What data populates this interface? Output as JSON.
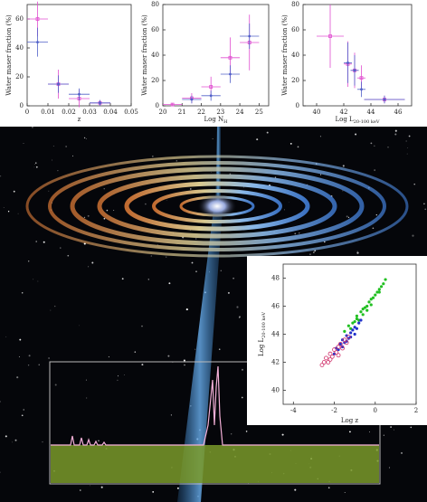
{
  "chart_data": [
    {
      "type": "scatter",
      "x_label": {
        "text": "z"
      },
      "y_label": {
        "text": "Water maser fraction (%)"
      },
      "xlim": [
        0,
        0.05
      ],
      "xticks": [
        0,
        0.01,
        0.02,
        0.03,
        0.04,
        0.05
      ],
      "ylim": [
        0,
        70
      ],
      "yticks": [
        0,
        20,
        40,
        60
      ],
      "series": [
        {
          "color": "#e04fd0",
          "marker": "square",
          "x": [
            0.005,
            0.015,
            0.025,
            0.035
          ],
          "values": [
            60,
            15,
            5,
            2
          ],
          "xerr": [
            0.005,
            0.005,
            0.005,
            0.005
          ],
          "yerr": [
            12,
            10,
            6,
            2
          ]
        },
        {
          "color": "#5060c8",
          "marker": "dot",
          "x": [
            0.005,
            0.015,
            0.025,
            0.035
          ],
          "values": [
            44,
            15,
            8,
            2
          ],
          "xerr": [
            0.005,
            0.005,
            0.005,
            0.005
          ],
          "yerr": [
            10,
            6,
            4,
            2
          ]
        }
      ]
    },
    {
      "type": "scatter",
      "x_label": {
        "text": "Log N",
        "sub": "H"
      },
      "y_label": {
        "text": "Water maser fraction (%)"
      },
      "xlim": [
        20,
        25.5
      ],
      "xticks": [
        20,
        21,
        22,
        23,
        24,
        25
      ],
      "ylim": [
        0,
        80
      ],
      "yticks": [
        0,
        20,
        40,
        60,
        80
      ],
      "series": [
        {
          "color": "#e04fd0",
          "marker": "square",
          "x": [
            20.5,
            21.5,
            22.5,
            23.5,
            24.5
          ],
          "values": [
            1,
            6,
            15,
            38,
            50
          ],
          "xerr": [
            0.5,
            0.5,
            0.5,
            0.5,
            0.5
          ],
          "yerr": [
            1,
            4,
            8,
            16,
            22
          ]
        },
        {
          "color": "#5060c8",
          "marker": "dot",
          "x": [
            21.5,
            22.5,
            23.5,
            24.5
          ],
          "values": [
            5,
            8,
            25,
            55
          ],
          "xerr": [
            0.5,
            0.5,
            0.5,
            0.5
          ],
          "yerr": [
            3,
            4,
            7,
            10
          ]
        }
      ]
    },
    {
      "type": "scatter",
      "x_label": {
        "text": "Log L",
        "sub": "20-100 keV"
      },
      "y_label": {
        "text": "Water maser fraction (%)"
      },
      "xlim": [
        39,
        47
      ],
      "xticks": [
        40,
        42,
        44,
        46
      ],
      "ylim": [
        0,
        80
      ],
      "yticks": [
        0,
        20,
        40,
        60,
        80
      ],
      "series": [
        {
          "color": "#e04fd0",
          "marker": "square",
          "x": [
            41,
            42.3,
            42.8,
            43.3,
            45
          ],
          "values": [
            55,
            33,
            28,
            22,
            5
          ],
          "xerr": [
            1,
            0.3,
            0.3,
            0.3,
            1.5
          ],
          "yerr": [
            25,
            18,
            14,
            10,
            3
          ]
        },
        {
          "color": "#5060c8",
          "marker": "dot",
          "x": [
            42.3,
            42.8,
            43.3,
            45
          ],
          "values": [
            34,
            28,
            13,
            5
          ],
          "xerr": [
            0.3,
            0.3,
            0.3,
            1.5
          ],
          "yerr": [
            16,
            12,
            6,
            3
          ]
        }
      ]
    },
    {
      "type": "scatter",
      "x_label": {
        "text": "Log z"
      },
      "y_label": {
        "text": "Log L",
        "sub": "20-100 keV"
      },
      "xlim": [
        -4.5,
        2
      ],
      "xticks": [
        -4,
        -2,
        0,
        2
      ],
      "ylim": [
        39,
        49
      ],
      "yticks": [
        40,
        42,
        44,
        46,
        48
      ],
      "series": [
        {
          "color": "#22c022",
          "marker": "dot",
          "x": [
            -1.5,
            -1.3,
            -1.2,
            -1.0,
            -0.9,
            -0.8,
            -0.7,
            -0.6,
            -0.5,
            -0.4,
            -0.3,
            -0.2,
            -0.1,
            0,
            0.1,
            0.2,
            0.3,
            0.4,
            0.5,
            -1.1,
            -0.6,
            -0.2,
            0.2,
            -0.9,
            -0.4
          ],
          "values": [
            44.2,
            44.6,
            44.4,
            44.9,
            45.3,
            45.0,
            45.6,
            45.4,
            45.9,
            46.0,
            46.3,
            46.1,
            46.6,
            46.8,
            47.0,
            47.2,
            47.4,
            47.6,
            47.9,
            44.8,
            45.8,
            46.5,
            47.0,
            45.1,
            45.7
          ]
        },
        {
          "color": "#2233cc",
          "marker": "dot",
          "x": [
            -2.0,
            -1.9,
            -1.8,
            -1.7,
            -1.6,
            -1.5,
            -1.4,
            -1.3,
            -1.2,
            -1.1,
            -1.0,
            -0.9,
            -0.8,
            -0.7,
            -1.6,
            -1.4,
            -1.2,
            -1.0
          ],
          "values": [
            42.6,
            43.0,
            42.9,
            43.3,
            43.6,
            43.4,
            43.9,
            43.7,
            44.1,
            44.3,
            44.5,
            44.4,
            44.8,
            45.0,
            43.1,
            43.5,
            43.8,
            44.0
          ]
        },
        {
          "color": "#d0306a",
          "marker": "ring",
          "x": [
            -2.6,
            -2.4,
            -2.3,
            -2.2,
            -2.1,
            -2.0,
            -1.9,
            -1.8,
            -1.7,
            -1.6,
            -1.5,
            -1.4,
            -1.3,
            -2.5,
            -2.2,
            -1.8
          ],
          "values": [
            41.8,
            42.3,
            42.0,
            42.6,
            42.4,
            42.9,
            42.7,
            43.1,
            43.3,
            43.0,
            43.6,
            43.4,
            43.8,
            42.0,
            42.2,
            42.5
          ]
        }
      ]
    }
  ]
}
